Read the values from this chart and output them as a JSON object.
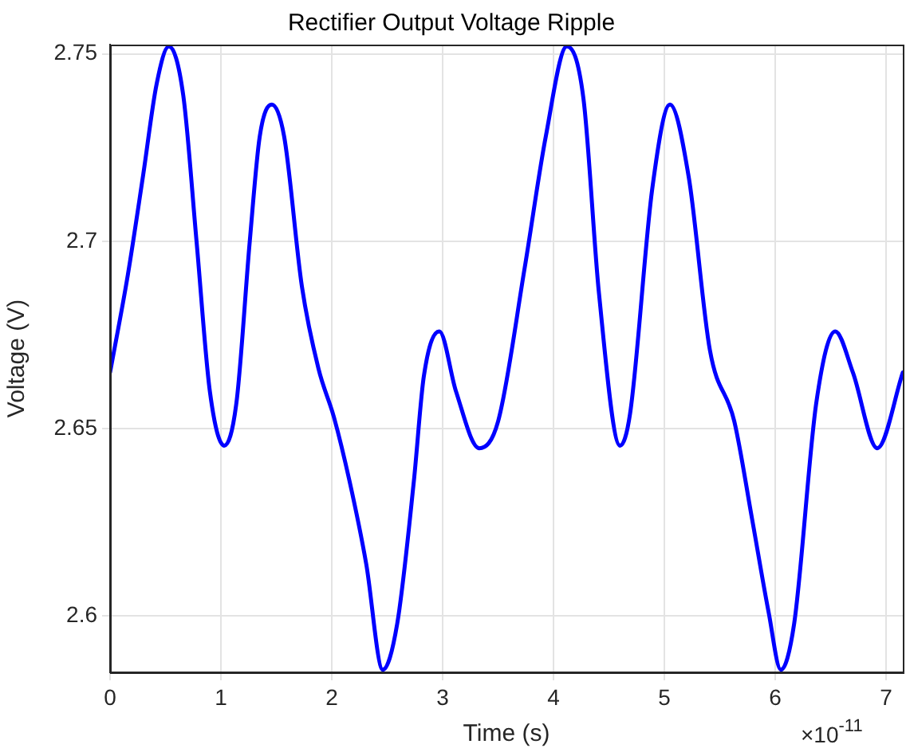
{
  "chart_data": {
    "type": "line",
    "title": "Rectifier Output Voltage Ripple",
    "xlabel": "Time (s)",
    "ylabel": "Voltage (V)",
    "annotations": [
      "×10$^{-11}$"
    ],
    "x": [
      0,
      0.16,
      0.3,
      0.42,
      0.53,
      0.66,
      0.78,
      0.9,
      1.03,
      1.14,
      1.26,
      1.35,
      1.46,
      1.57,
      1.73,
      1.88,
      2.02,
      2.16,
      2.31,
      2.46,
      2.59,
      2.74,
      2.83,
      2.97,
      3.12,
      3.33,
      3.5,
      3.74,
      3.93,
      4.12,
      4.27,
      4.41,
      4.6,
      4.69,
      4.89,
      5.05,
      5.22,
      5.41,
      5.63,
      5.79,
      5.94,
      6.05,
      6.17,
      6.37,
      6.54,
      6.7,
      6.92,
      7.15
    ],
    "series": [
      {
        "color": "#0000ff",
        "values": [
          2.665,
          2.691,
          2.718,
          2.742,
          2.752,
          2.739,
          2.7,
          2.66,
          2.6455,
          2.657,
          2.7,
          2.728,
          2.7365,
          2.728,
          2.688,
          2.666,
          2.653,
          2.636,
          2.614,
          2.5857,
          2.598,
          2.636,
          2.664,
          2.676,
          2.66,
          2.6448,
          2.652,
          2.693,
          2.728,
          2.752,
          2.738,
          2.686,
          2.6455,
          2.654,
          2.714,
          2.7365,
          2.717,
          2.671,
          2.652,
          2.626,
          2.601,
          2.5857,
          2.598,
          2.657,
          2.676,
          2.665,
          2.6448,
          2.665
        ]
      }
    ],
    "xlim": [
      0,
      7.15
    ],
    "xticks": [
      0,
      1,
      2,
      3,
      4,
      5,
      6,
      7
    ],
    "ylim": [
      2.585,
      2.7525
    ],
    "yticks": [
      2.6,
      2.65,
      2.7,
      2.75
    ],
    "grid": true,
    "legend": false,
    "marker": "none",
    "line_style": "solid"
  }
}
